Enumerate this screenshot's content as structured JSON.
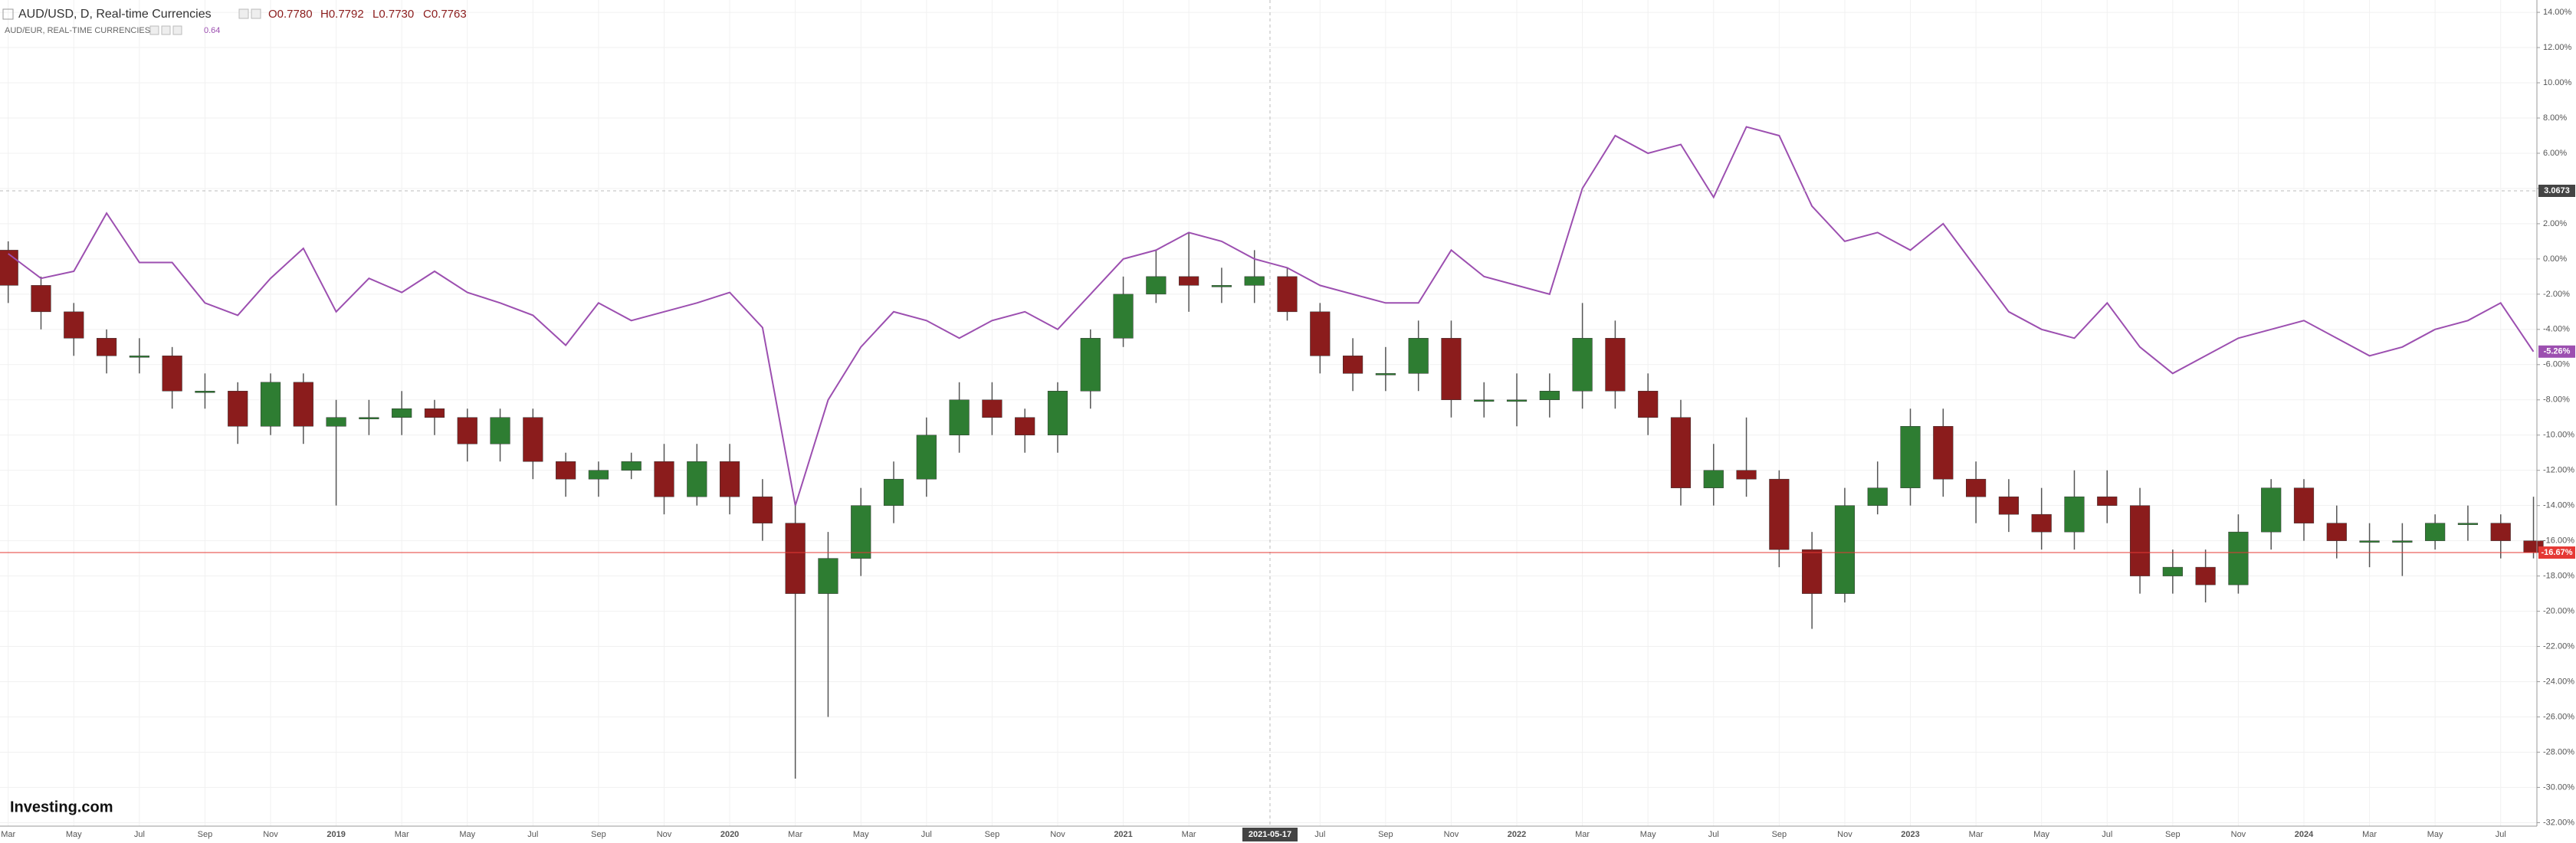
{
  "chart_data": {
    "type": "candlestick",
    "header": {
      "ohlc": [
        "O0.7780",
        "H0.7792",
        "L0.7730",
        "C0.7763"
      ]
    },
    "logo": "Investing.com",
    "crosshair": {
      "date_label": "2021-05-17",
      "price_label": "3.0673"
    },
    "categories": [
      "Mar",
      null,
      "May",
      null,
      "Jul",
      null,
      "Sep",
      null,
      "Nov",
      null,
      "2019",
      null,
      "Mar",
      null,
      "May",
      null,
      "Jul",
      null,
      "Sep",
      null,
      "Nov",
      null,
      "2020",
      null,
      "Mar",
      null,
      "May",
      null,
      "Jul",
      null,
      "Sep",
      null,
      "Nov",
      null,
      "2021",
      null,
      "Mar",
      null,
      null,
      null,
      "Jul",
      null,
      "Sep",
      null,
      "Nov",
      null,
      "2022",
      null,
      "Mar",
      null,
      "May",
      null,
      "Jul",
      null,
      "Sep",
      null,
      "Nov",
      null,
      "2023",
      null,
      "Mar",
      null,
      "May",
      null,
      "Jul",
      null,
      "Sep",
      null,
      "Nov",
      null,
      "2024",
      null,
      "Mar",
      null,
      "May",
      null,
      "Jul",
      null
    ],
    "series": [
      {
        "name": "AUD/USD, D, Real-time Currencies",
        "type": "candlestick",
        "up_color": "#2e7d32",
        "down_color": "#8b1c1c",
        "price_line_color": "#e53935",
        "last_value_label": "-16.67%",
        "open": [
          0.5,
          -1.5,
          -3,
          -4.5,
          -5.5,
          -5.5,
          -7.5,
          -7.5,
          -9.5,
          -7,
          -9.5,
          -9,
          -9,
          -8.5,
          -9,
          -10.5,
          -9,
          -11.5,
          -12.5,
          -12,
          -11.5,
          -13.5,
          -11.5,
          -13.5,
          -15,
          -19,
          -17,
          -14,
          -12.5,
          -10,
          -8,
          -9,
          -10,
          -7.5,
          -4.5,
          -2,
          -1,
          -1.5,
          -1.5,
          -1,
          -3,
          -5.5,
          -6.5,
          -6.5,
          -4.5,
          -8,
          -8,
          -8,
          -7.5,
          -4.5,
          -7.5,
          -9,
          -13,
          -12,
          -12.5,
          -16.5,
          -19,
          -14,
          -13,
          -9.5,
          -12.5,
          -13.5,
          -14.5,
          -15.5,
          -13.5,
          -14,
          -18,
          -17.5,
          -18.5,
          -15.5,
          -13,
          -15,
          -16,
          -16,
          -16,
          -15,
          -15,
          -16
        ],
        "high": [
          1,
          -1,
          -2.5,
          -4,
          -4.5,
          -5,
          -6.5,
          -7,
          -6.5,
          -6.5,
          -8,
          -8,
          -7.5,
          -8,
          -8.5,
          -8.5,
          -8.5,
          -11,
          -11.5,
          -11,
          -10.5,
          -10.5,
          -10.5,
          -12.5,
          -14,
          -15.5,
          -13,
          -11.5,
          -9,
          -7,
          -7,
          -8.5,
          -7,
          -4,
          -1,
          0.5,
          1.5,
          -0.5,
          0.5,
          -0.5,
          -2.5,
          -4.5,
          -5,
          -3.5,
          -3.5,
          -7,
          -6.5,
          -6.5,
          -2.5,
          -3.5,
          -6.5,
          -8,
          -10.5,
          -9,
          -12,
          -15.5,
          -13,
          -11.5,
          -8.5,
          -8.5,
          -11.5,
          -12.5,
          -13,
          -12,
          -12,
          -13,
          -16.5,
          -16.5,
          -14.5,
          -12.5,
          -12.5,
          -14,
          -15,
          -15,
          -14.5,
          -14,
          -14.5,
          -13.5
        ],
        "low": [
          -2.5,
          -4,
          -5.5,
          -6.5,
          -6.5,
          -8.5,
          -8.5,
          -10.5,
          -10,
          -10.5,
          -14,
          -10,
          -10,
          -10,
          -11.5,
          -11.5,
          -12.5,
          -13.5,
          -13.5,
          -12.5,
          -14.5,
          -14,
          -14.5,
          -16,
          -29.5,
          -26,
          -18,
          -15,
          -13.5,
          -11,
          -10,
          -11,
          -11,
          -8.5,
          -5,
          -2.5,
          -3,
          -2.5,
          -2.5,
          -3.5,
          -6.5,
          -7.5,
          -7.5,
          -7.5,
          -9,
          -9,
          -9.5,
          -9,
          -8.5,
          -8.5,
          -10,
          -14,
          -14,
          -13.5,
          -17.5,
          -21,
          -19.5,
          -14.5,
          -14,
          -13.5,
          -15,
          -15.5,
          -16.5,
          -16.5,
          -15,
          -19,
          -19,
          -19.5,
          -19,
          -16.5,
          -16,
          -17,
          -17.5,
          -18,
          -16.5,
          -16,
          -17,
          -17
        ],
        "close": [
          -1.5,
          -3,
          -4.5,
          -5.5,
          -5.5,
          -7.5,
          -7.5,
          -9.5,
          -7,
          -9.5,
          -9,
          -9,
          -8.5,
          -9,
          -10.5,
          -9,
          -11.5,
          -12.5,
          -12,
          -11.5,
          -13.5,
          -11.5,
          -13.5,
          -15,
          -19,
          -17,
          -14,
          -12.5,
          -10,
          -8,
          -9,
          -10,
          -7.5,
          -4.5,
          -2,
          -1,
          -1.5,
          -1.5,
          -1,
          -3,
          -5.5,
          -6.5,
          -6.5,
          -4.5,
          -8,
          -8,
          -8,
          -7.5,
          -4.5,
          -7.5,
          -9,
          -13,
          -12,
          -12.5,
          -16.5,
          -19,
          -14,
          -13,
          -9.5,
          -12.5,
          -13.5,
          -14.5,
          -15.5,
          -13.5,
          -14,
          -18,
          -17.5,
          -18.5,
          -15.5,
          -13,
          -15,
          -16,
          -16,
          -16,
          -15,
          -15,
          -16,
          -16.67
        ]
      },
      {
        "name": "AUD/EUR, REAL-TIME CURRENCIES",
        "type": "line",
        "color": "#9c4fb0",
        "legend_value": 0.64,
        "last_value_label": "-5.26%",
        "values": [
          0.3,
          -1.1,
          -0.7,
          2.6,
          -0.2,
          -0.2,
          -2.5,
          -3.2,
          -1.1,
          0.6,
          -3,
          -1.1,
          -1.9,
          -0.7,
          -1.9,
          -2.5,
          -3.2,
          -4.9,
          -2.5,
          -3.5,
          -3,
          -2.5,
          -1.9,
          -3.9,
          -14,
          -8,
          -5,
          -3,
          -3.5,
          -4.5,
          -3.5,
          -3,
          -4,
          -2,
          0,
          0.5,
          1.5,
          1,
          0,
          -0.5,
          -1.5,
          -2,
          -2.5,
          -2.5,
          0.5,
          -1,
          -1.5,
          -2,
          4,
          7,
          6,
          6.5,
          3.5,
          7.5,
          7,
          3,
          1,
          1.5,
          0.5,
          2,
          -0.5,
          -3,
          -4,
          -4.5,
          -2.5,
          -5,
          -6.5,
          -5.5,
          -4.5,
          -4,
          -3.5,
          -4.5,
          -5.5,
          -5,
          -4,
          -3.5,
          -2.5,
          -5.26
        ]
      }
    ],
    "ylim": [
      -32.2,
      14.7
    ],
    "yticks": [
      {
        "value": 14,
        "label": "14.00%"
      },
      {
        "value": 12,
        "label": "12.00%"
      },
      {
        "value": 10,
        "label": "10.00%"
      },
      {
        "value": 8,
        "label": "8.00%"
      },
      {
        "value": 6,
        "label": "6.00%"
      },
      {
        "value": 4,
        "label": "4.00%"
      },
      {
        "value": 2,
        "label": "2.00%"
      },
      {
        "value": 0,
        "label": "0.00%"
      },
      {
        "value": -2,
        "label": "-2.00%"
      },
      {
        "value": -4,
        "label": "-4.00%"
      },
      {
        "value": -6,
        "label": "-6.00%"
      },
      {
        "value": -8,
        "label": "-8.00%"
      },
      {
        "value": -10,
        "label": "-10.00%"
      },
      {
        "value": -12,
        "label": "-12.00%"
      },
      {
        "value": -14,
        "label": "-14.00%"
      },
      {
        "value": -16,
        "label": "-16.00%"
      },
      {
        "value": -18,
        "label": "-18.00%"
      },
      {
        "value": -20,
        "label": "-20.00%"
      },
      {
        "value": -22,
        "label": "-22.00%"
      },
      {
        "value": -24,
        "label": "-24.00%"
      },
      {
        "value": -26,
        "label": "-26.00%"
      },
      {
        "value": -28,
        "label": "-28.00%"
      },
      {
        "value": -30,
        "label": "-30.00%"
      },
      {
        "value": -32,
        "label": "-32.00%"
      }
    ],
    "grid": true
  }
}
